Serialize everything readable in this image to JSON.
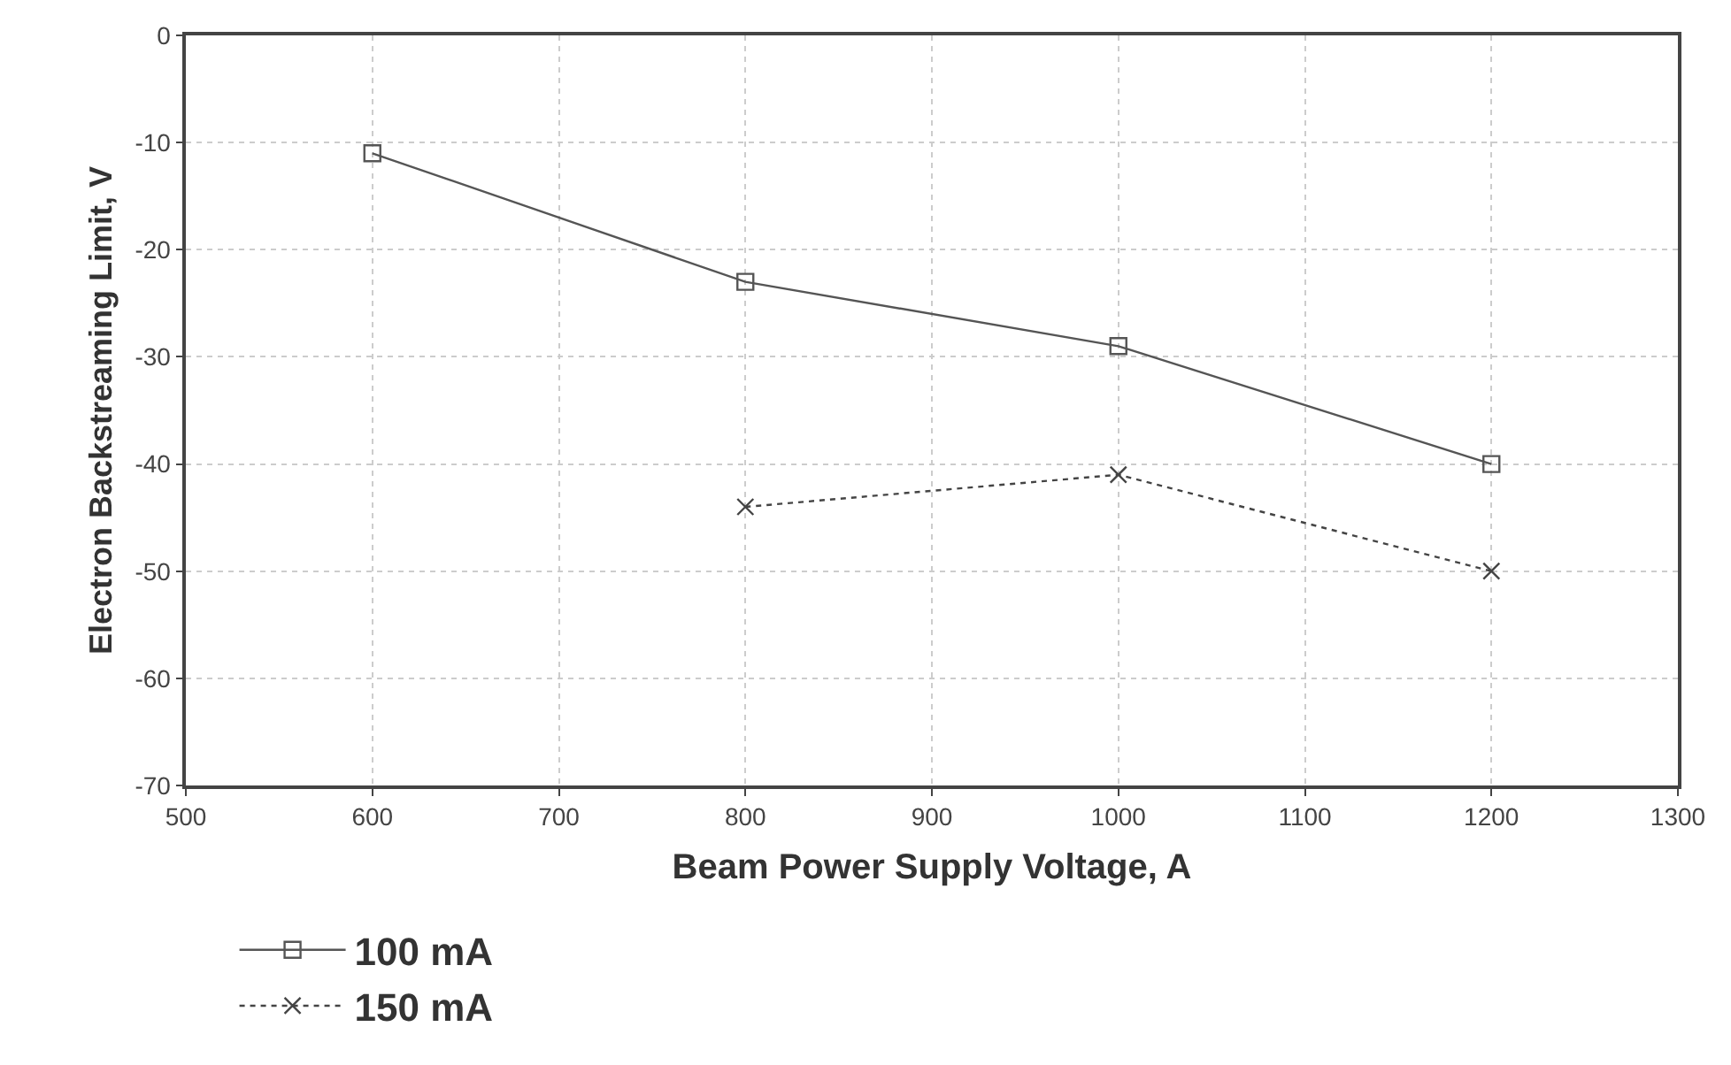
{
  "chart_data": {
    "type": "line",
    "xlabel": "Beam Power Supply Voltage, A",
    "ylabel": "Electron Backstreaming Limit, V",
    "xlim": [
      500,
      1300
    ],
    "xticks": [
      500,
      600,
      700,
      800,
      900,
      1000,
      1100,
      1200,
      1300
    ],
    "ylim": [
      -70,
      0
    ],
    "yticks": [
      -70,
      -60,
      -50,
      -40,
      -30,
      -20,
      -10,
      0
    ],
    "grid": true,
    "legend": "bottom left",
    "series": [
      {
        "name": "100 mA",
        "color": "#555555",
        "x": [
          600,
          800,
          1000,
          1200
        ],
        "values": [
          -11,
          -23,
          -29,
          -40
        ],
        "marker": "square",
        "line_style": "solid"
      },
      {
        "name": "150 mA",
        "color": "#444444",
        "x": [
          800,
          1000,
          1200
        ],
        "values": [
          -44,
          -41,
          -50
        ],
        "marker": "cross",
        "line_style": "dotted"
      }
    ]
  }
}
